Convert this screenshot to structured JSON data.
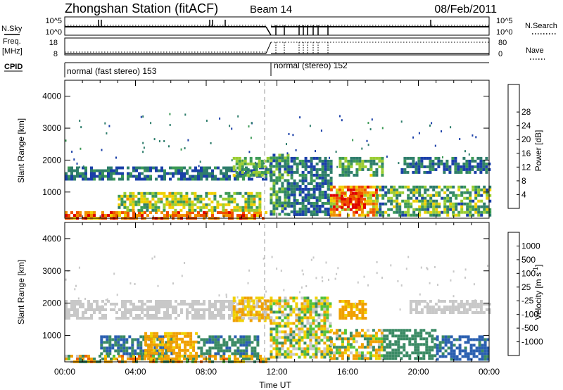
{
  "header": {
    "station": "Zhongshan Station (fitACF)",
    "beam": "Beam 14",
    "date": "08/Feb/2011"
  },
  "status_panels": {
    "left_labels": {
      "nsky": "N.Sky",
      "freq": "Freq.",
      "freq_unit": "[MHz]",
      "cpid": "CPID"
    },
    "right_labels": {
      "nsearch": "N.Search",
      "nave": "Nave"
    },
    "noise_ticks_left": [
      "10^5",
      "10^0"
    ],
    "noise_ticks_right": [
      "10^5",
      "10^0"
    ],
    "freq_ticks": [
      "18",
      "8"
    ],
    "nave_ticks": [
      "80",
      "0"
    ],
    "cpid_segments": [
      {
        "label": "normal (fast stereo) 153",
        "start_hour": 0.0,
        "end_hour": 11.6
      },
      {
        "label": "normal (stereo) 152",
        "start_hour": 11.6,
        "end_hour": 24.0
      }
    ]
  },
  "colors": {
    "power_scale": [
      "#1010e0",
      "#1a3fa8",
      "#2e7d6b",
      "#3c9a55",
      "#9acd32",
      "#f0d000",
      "#f09000",
      "#f05000",
      "#e00000"
    ],
    "velocity_scale": [
      "#1a2fb8",
      "#2a5fb0",
      "#3a8a64",
      "#54c33a",
      "#c8c8c8",
      "#f0d000",
      "#f0a000",
      "#f06000",
      "#e00000"
    ],
    "cpid_break_line": "#bbbbbb"
  },
  "chart_data": [
    {
      "type": "heatmap",
      "name": "power",
      "ylabel": "Slant Range [km]",
      "colorbar_label": "Power [dB]",
      "colorbar_ticks": [
        "4",
        "8",
        "12",
        "16",
        "20",
        "24",
        "28"
      ],
      "x_ticks": [
        "00:00",
        "04:00",
        "08:00",
        "12:00",
        "16:00",
        "20:00",
        "00:00"
      ],
      "y_ticks": [
        "1000",
        "2000",
        "3000",
        "4000"
      ],
      "xlim_hours": [
        0,
        24
      ],
      "ylim_km": [
        180,
        4500
      ],
      "echo_regions": [
        {
          "t0": 0.0,
          "t1": 11.6,
          "r0": 180,
          "r1": 400,
          "v0": 20,
          "v1": 30
        },
        {
          "t0": 3.0,
          "t1": 11.0,
          "r0": 400,
          "r1": 1000,
          "v0": 10,
          "v1": 22
        },
        {
          "t0": 0.0,
          "t1": 11.6,
          "r0": 1400,
          "r1": 1800,
          "v0": 4,
          "v1": 12
        },
        {
          "t0": 9.5,
          "t1": 11.6,
          "r0": 1500,
          "r1": 2100,
          "v0": 10,
          "v1": 18
        },
        {
          "t0": 11.6,
          "t1": 12.6,
          "r0": 300,
          "r1": 2200,
          "v0": 6,
          "v1": 16
        },
        {
          "t0": 12.6,
          "t1": 15.0,
          "r0": 300,
          "r1": 2100,
          "v0": 4,
          "v1": 12
        },
        {
          "t0": 15.0,
          "t1": 17.6,
          "r0": 300,
          "r1": 1200,
          "v0": 16,
          "v1": 30
        },
        {
          "t0": 15.6,
          "t1": 17.0,
          "r0": 500,
          "r1": 1000,
          "v0": 26,
          "v1": 31
        },
        {
          "t0": 17.6,
          "t1": 24.0,
          "r0": 300,
          "r1": 1200,
          "v0": 6,
          "v1": 20
        },
        {
          "t0": 15.5,
          "t1": 18.0,
          "r0": 1500,
          "r1": 2100,
          "v0": 8,
          "v1": 18
        },
        {
          "t0": 19.0,
          "t1": 24.0,
          "r0": 1600,
          "r1": 2100,
          "v0": 4,
          "v1": 12
        }
      ]
    },
    {
      "type": "heatmap",
      "name": "velocity",
      "ylabel": "Slant Range [km]",
      "colorbar_label": "Velocity [m s^-1]",
      "colorbar_ticks": [
        "1000",
        "500",
        "100",
        "25",
        "-25",
        "-100",
        "-500",
        "-1000"
      ],
      "x_ticks": [
        "00:00",
        "04:00",
        "08:00",
        "12:00",
        "16:00",
        "20:00",
        "00:00"
      ],
      "y_ticks": [
        "1000",
        "2000",
        "3000",
        "4000"
      ],
      "xlabel": "Time UT",
      "xlim_hours": [
        0,
        24
      ],
      "ylim_km": [
        180,
        4500
      ],
      "echo_regions": [
        {
          "t0": 0.0,
          "t1": 11.6,
          "r0": 180,
          "r1": 400,
          "v0": -600,
          "v1": 400
        },
        {
          "t0": 2.0,
          "t1": 6.0,
          "r0": 400,
          "r1": 1000,
          "v0": 100,
          "v1": 900
        },
        {
          "t0": 4.5,
          "t1": 7.5,
          "r0": 300,
          "r1": 1100,
          "v0": -300,
          "v1": -60
        },
        {
          "t0": 7.5,
          "t1": 11.0,
          "r0": 400,
          "r1": 1000,
          "v0": 100,
          "v1": 600
        },
        {
          "t0": 0.0,
          "t1": 11.6,
          "r0": 1500,
          "r1": 2100,
          "v0": -25,
          "v1": 25
        },
        {
          "t0": 9.5,
          "t1": 11.6,
          "r0": 1500,
          "r1": 2200,
          "v0": -200,
          "v1": -40
        },
        {
          "t0": 11.6,
          "t1": 15.0,
          "r0": 300,
          "r1": 2200,
          "v0": -150,
          "v1": 150
        },
        {
          "t0": 15.0,
          "t1": 18.0,
          "r0": 300,
          "r1": 1200,
          "v0": -300,
          "v1": 200
        },
        {
          "t0": 15.5,
          "t1": 17.0,
          "r0": 1500,
          "r1": 2100,
          "v0": -300,
          "v1": -60
        },
        {
          "t0": 18.0,
          "t1": 21.0,
          "r0": 300,
          "r1": 1200,
          "v0": 100,
          "v1": 500
        },
        {
          "t0": 21.0,
          "t1": 24.0,
          "r0": 300,
          "r1": 1000,
          "v0": 400,
          "v1": 1000
        },
        {
          "t0": 19.5,
          "t1": 24.0,
          "r0": 1700,
          "r1": 2100,
          "v0": -25,
          "v1": 25
        }
      ]
    }
  ]
}
